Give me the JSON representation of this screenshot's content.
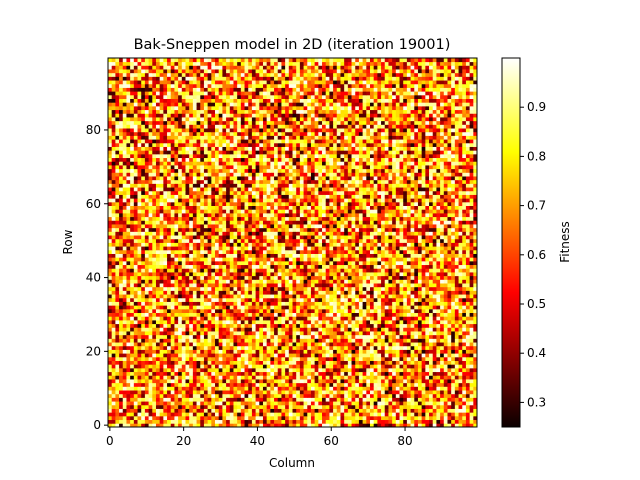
{
  "chart_data": {
    "type": "heatmap",
    "title": "Bak-Sneppen model in 2D (iteration 19001)",
    "xlabel": "Column",
    "ylabel": "Row",
    "colorbar_label": "Fitness",
    "grid_size": [
      100,
      100
    ],
    "xlim": [
      0,
      99
    ],
    "ylim": [
      0,
      99
    ],
    "x_ticks": [
      0,
      20,
      40,
      60,
      80
    ],
    "y_ticks": [
      0,
      20,
      40,
      60,
      80
    ],
    "colorbar_range": [
      0.25,
      1.0
    ],
    "colorbar_ticks": [
      0.3,
      0.4,
      0.5,
      0.6,
      0.7,
      0.8,
      0.9
    ],
    "colormap": "hot",
    "colormap_stops": [
      "#0b0000",
      "#ff0000",
      "#ffff00",
      "#ffffff"
    ],
    "grid": false,
    "cell_values_note_free": true
  }
}
